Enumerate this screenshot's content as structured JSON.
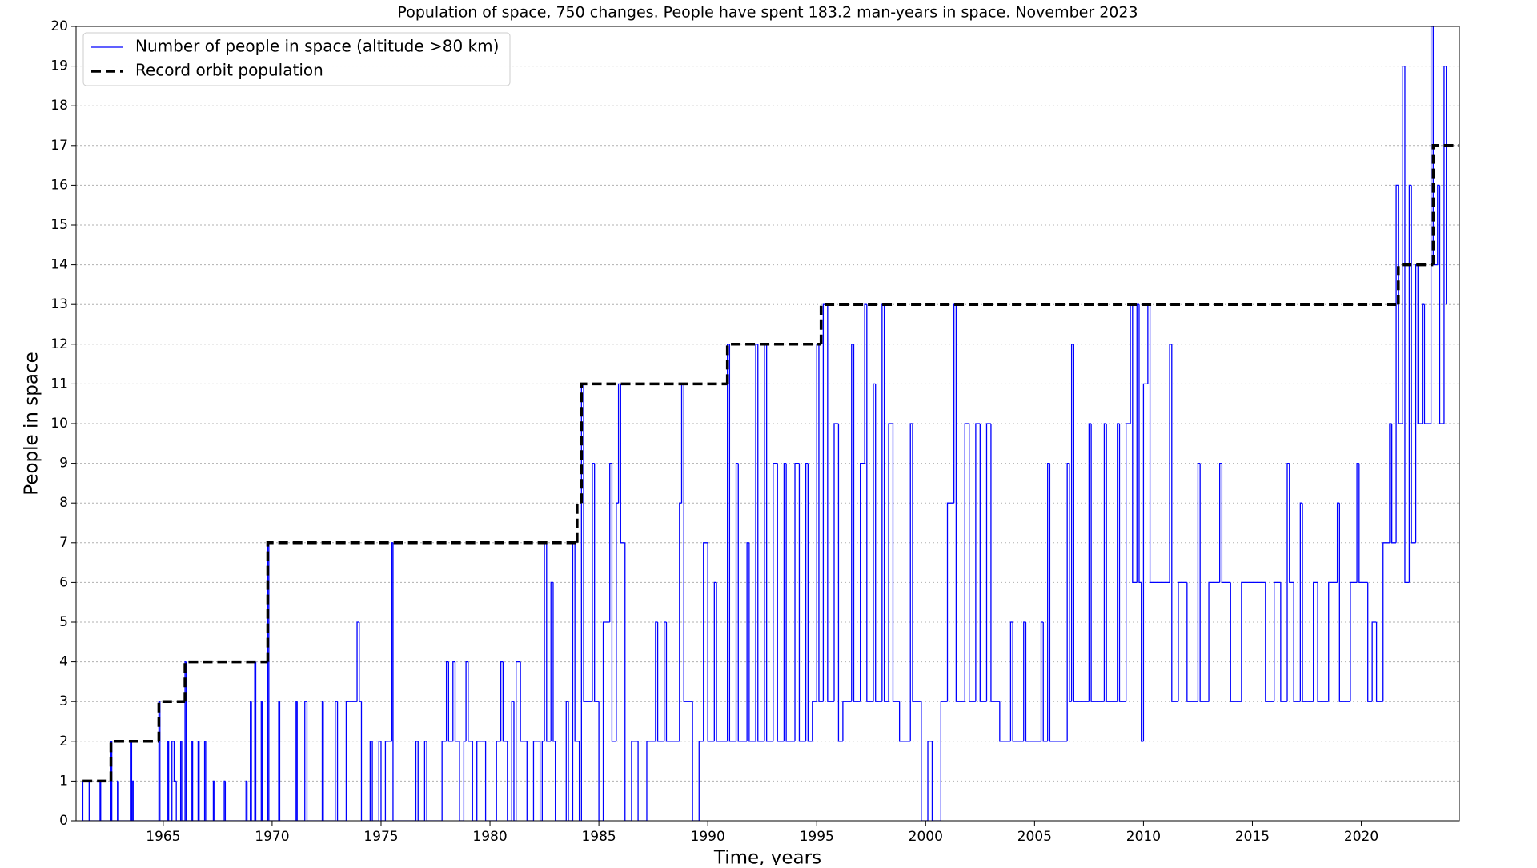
{
  "chart_data": {
    "type": "line",
    "drawstyle": "steps-post",
    "title": "Population of space, 750 changes. People have spent 183.2 man-years in space. November 2023",
    "xlabel": "Time, years",
    "ylabel": "People in space",
    "xlim": [
      1961.0,
      2024.5
    ],
    "ylim": [
      0,
      20
    ],
    "xticks": [
      1965,
      1970,
      1975,
      1980,
      1985,
      1990,
      1995,
      2000,
      2005,
      2010,
      2015,
      2020
    ],
    "yticks": [
      0,
      1,
      2,
      3,
      4,
      5,
      6,
      7,
      8,
      9,
      10,
      11,
      12,
      13,
      14,
      15,
      16,
      17,
      18,
      19,
      20
    ],
    "grid": "y",
    "legend": "upper left",
    "series": [
      {
        "name": "Number of people in space (altitude >80 km)",
        "color": "#0000ff",
        "style": "solid",
        "x": [
          1961.3,
          1961.31,
          1961.6,
          1961.62,
          1962.1,
          1962.13,
          1962.6,
          1962.64,
          1962.9,
          1962.95,
          1963.5,
          1963.55,
          1963.6,
          1963.65,
          1964.8,
          1964.85,
          1965.2,
          1965.25,
          1965.4,
          1965.5,
          1965.6,
          1965.8,
          1965.85,
          1966.0,
          1966.05,
          1966.3,
          1966.35,
          1966.6,
          1966.65,
          1966.9,
          1966.95,
          1967.3,
          1967.35,
          1967.8,
          1967.85,
          1968.8,
          1968.85,
          1969.0,
          1969.05,
          1969.2,
          1969.25,
          1969.5,
          1969.55,
          1969.8,
          1969.85,
          1970.3,
          1970.35,
          1971.1,
          1971.15,
          1971.5,
          1971.6,
          1972.3,
          1972.35,
          1972.9,
          1973.0,
          1973.4,
          1973.9,
          1974.0,
          1974.1,
          1974.5,
          1974.6,
          1974.9,
          1975.0,
          1975.2,
          1975.5,
          1975.55,
          1976.6,
          1976.7,
          1977.0,
          1977.1,
          1977.8,
          1978.0,
          1978.1,
          1978.3,
          1978.4,
          1978.6,
          1978.8,
          1978.9,
          1979.0,
          1979.2,
          1979.4,
          1979.8,
          1980.3,
          1980.5,
          1980.6,
          1980.8,
          1981.0,
          1981.1,
          1981.2,
          1981.4,
          1981.7,
          1982.0,
          1982.3,
          1982.4,
          1982.5,
          1982.6,
          1982.8,
          1982.9,
          1983.0,
          1983.5,
          1983.6,
          1983.8,
          1983.9,
          1984.1,
          1984.2,
          1984.3,
          1984.7,
          1984.8,
          1985.0,
          1985.2,
          1985.5,
          1985.6,
          1985.8,
          1985.9,
          1986.0,
          1986.2,
          1986.5,
          1986.8,
          1987.2,
          1987.6,
          1987.7,
          1988.0,
          1988.1,
          1988.7,
          1988.8,
          1988.9,
          1989.3,
          1989.6,
          1989.8,
          1990.0,
          1990.3,
          1990.4,
          1990.9,
          1991.0,
          1991.3,
          1991.4,
          1991.8,
          1991.9,
          1992.2,
          1992.3,
          1992.6,
          1992.7,
          1993.0,
          1993.2,
          1993.5,
          1993.6,
          1994.0,
          1994.2,
          1994.5,
          1994.6,
          1994.8,
          1995.0,
          1995.1,
          1995.3,
          1995.5,
          1995.8,
          1996.0,
          1996.2,
          1996.6,
          1996.7,
          1997.0,
          1997.2,
          1997.3,
          1997.6,
          1997.7,
          1998.0,
          1998.1,
          1998.3,
          1998.5,
          1998.8,
          1999.3,
          1999.4,
          1999.8,
          2000.1,
          2000.3,
          2000.7,
          2001.0,
          2001.3,
          2001.4,
          2001.8,
          2002.0,
          2002.3,
          2002.5,
          2002.8,
          2003.0,
          2003.4,
          2003.9,
          2004.0,
          2004.5,
          2004.6,
          2005.3,
          2005.4,
          2005.6,
          2005.7,
          2006.5,
          2006.6,
          2006.7,
          2006.8,
          2007.5,
          2007.6,
          2008.2,
          2008.3,
          2008.8,
          2008.9,
          2009.2,
          2009.4,
          2009.5,
          2009.7,
          2009.8,
          2009.9,
          2010.0,
          2010.2,
          2010.3,
          2011.2,
          2011.3,
          2011.6,
          2012.0,
          2012.5,
          2012.6,
          2013.0,
          2013.5,
          2013.6,
          2014.0,
          2014.5,
          2015.6,
          2016.0,
          2016.3,
          2016.6,
          2016.7,
          2016.9,
          2017.2,
          2017.3,
          2017.8,
          2018.0,
          2018.5,
          2018.9,
          2019.0,
          2019.5,
          2019.8,
          2019.9,
          2020.3,
          2020.5,
          2020.7,
          2021.0,
          2021.3,
          2021.4,
          2021.6,
          2021.7,
          2021.9,
          2022.0,
          2022.2,
          2022.3,
          2022.5,
          2022.6,
          2022.8,
          2022.9,
          2023.2,
          2023.3,
          2023.5,
          2023.6,
          2023.8,
          2023.9
        ],
        "values": [
          1,
          0,
          1,
          0,
          1,
          0,
          2,
          0,
          1,
          0,
          2,
          0,
          1,
          0,
          3,
          0,
          2,
          0,
          2,
          1,
          0,
          2,
          0,
          4,
          0,
          2,
          0,
          2,
          0,
          2,
          0,
          1,
          0,
          1,
          0,
          1,
          0,
          3,
          0,
          4,
          0,
          3,
          0,
          7,
          0,
          3,
          0,
          3,
          0,
          3,
          0,
          3,
          0,
          3,
          0,
          3,
          5,
          3,
          0,
          2,
          0,
          2,
          0,
          2,
          7,
          0,
          2,
          0,
          2,
          0,
          2,
          4,
          2,
          4,
          2,
          0,
          2,
          4,
          2,
          0,
          2,
          0,
          2,
          4,
          2,
          0,
          3,
          0,
          4,
          2,
          0,
          2,
          0,
          2,
          7,
          2,
          6,
          2,
          0,
          3,
          0,
          7,
          2,
          0,
          11,
          3,
          9,
          3,
          0,
          5,
          9,
          2,
          8,
          11,
          7,
          0,
          2,
          0,
          2,
          5,
          2,
          5,
          2,
          8,
          11,
          3,
          0,
          2,
          7,
          2,
          6,
          2,
          12,
          2,
          9,
          2,
          7,
          2,
          12,
          2,
          12,
          2,
          9,
          2,
          9,
          2,
          9,
          2,
          9,
          2,
          3,
          12,
          3,
          13,
          3,
          10,
          2,
          3,
          12,
          3,
          9,
          13,
          3,
          11,
          3,
          13,
          3,
          10,
          3,
          2,
          10,
          3,
          0,
          2,
          0,
          3,
          8,
          13,
          3,
          10,
          3,
          10,
          3,
          10,
          3,
          2,
          5,
          2,
          5,
          2,
          5,
          2,
          9,
          2,
          9,
          3,
          12,
          3,
          10,
          3,
          10,
          3,
          10,
          3,
          10,
          13,
          6,
          13,
          6,
          2,
          11,
          13,
          6,
          12,
          3,
          6,
          3,
          9,
          3,
          6,
          9,
          6,
          3,
          6,
          3,
          6,
          3,
          9,
          6,
          3,
          8,
          3,
          6,
          3,
          6,
          8,
          3,
          6,
          9,
          6,
          3,
          5,
          3,
          7,
          10,
          7,
          16,
          10,
          19,
          6,
          16,
          7,
          14,
          10,
          13,
          10,
          20,
          14,
          16,
          10,
          19,
          13
        ]
      },
      {
        "name": "Record orbit population",
        "color": "#000000",
        "style": "dashed",
        "x": [
          1961.3,
          1962.6,
          1964.8,
          1966.0,
          1969.8,
          1984.0,
          1984.2,
          1990.9,
          1995.2,
          2021.7,
          2023.3,
          2024.5
        ],
        "values": [
          1,
          2,
          3,
          4,
          7,
          8,
          11,
          12,
          13,
          14,
          17,
          17
        ]
      }
    ]
  }
}
